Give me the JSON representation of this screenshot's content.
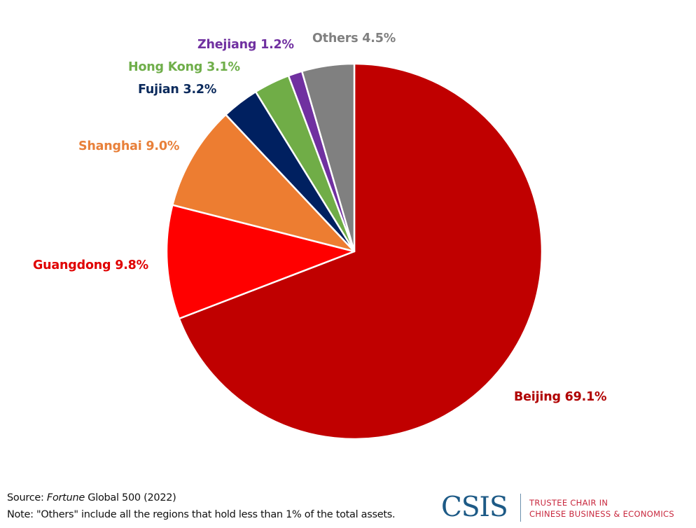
{
  "chart_data": {
    "type": "pie",
    "title": "",
    "start_angle_deg": 0,
    "direction": "clockwise",
    "center": [
      506,
      359
    ],
    "radius": 268,
    "slices": [
      {
        "name": "Beijing",
        "value": 69.1,
        "label": "Beijing 69.1%",
        "color": "#c00000"
      },
      {
        "name": "Guangdong",
        "value": 9.8,
        "label": "Guangdong 9.8%",
        "color": "#ff0000"
      },
      {
        "name": "Shanghai",
        "value": 9.0,
        "label": "Shanghai 9.0%",
        "color": "#ed7d31"
      },
      {
        "name": "Fujian",
        "value": 3.2,
        "label": "Fujian 3.2%",
        "color": "#002060"
      },
      {
        "name": "Hong Kong",
        "value": 3.1,
        "label": "Hong Kong 3.1%",
        "color": "#70ad47"
      },
      {
        "name": "Zhejiang",
        "value": 1.2,
        "label": "Zhejiang 1.2%",
        "color": "#7030a0"
      },
      {
        "name": "Others",
        "value": 4.5,
        "label": "Others 4.5%",
        "color": "#808080"
      }
    ],
    "label_colors": {
      "Beijing": "#b00000",
      "Guangdong": "#e00000",
      "Shanghai": "#e8803a",
      "Fujian": "#0b2a5c",
      "Hong Kong": "#6fae4a",
      "Zhejiang": "#7030a0",
      "Others": "#808080"
    },
    "legend": "none",
    "units": "% of total assets"
  },
  "labels": {
    "beijing": "Beijing 69.1%",
    "guangdong": "Guangdong 9.8%",
    "shanghai": "Shanghai 9.0%",
    "fujian": "Fujian 3.2%",
    "hongkong": "Hong Kong 3.1%",
    "zhejiang": "Zhejiang 1.2%",
    "others": "Others 4.5%"
  },
  "footer": {
    "source_prefix": "Source: ",
    "source_italic": "Fortune",
    "source_rest": " Global 500 (2022)",
    "note": "Note: \"Others\" include all the regions that hold less than 1% of the total assets."
  },
  "logo": {
    "name": "CSIS",
    "line1": "TRUSTEE CHAIR IN",
    "line2": "CHINESE BUSINESS & ECONOMICS"
  }
}
